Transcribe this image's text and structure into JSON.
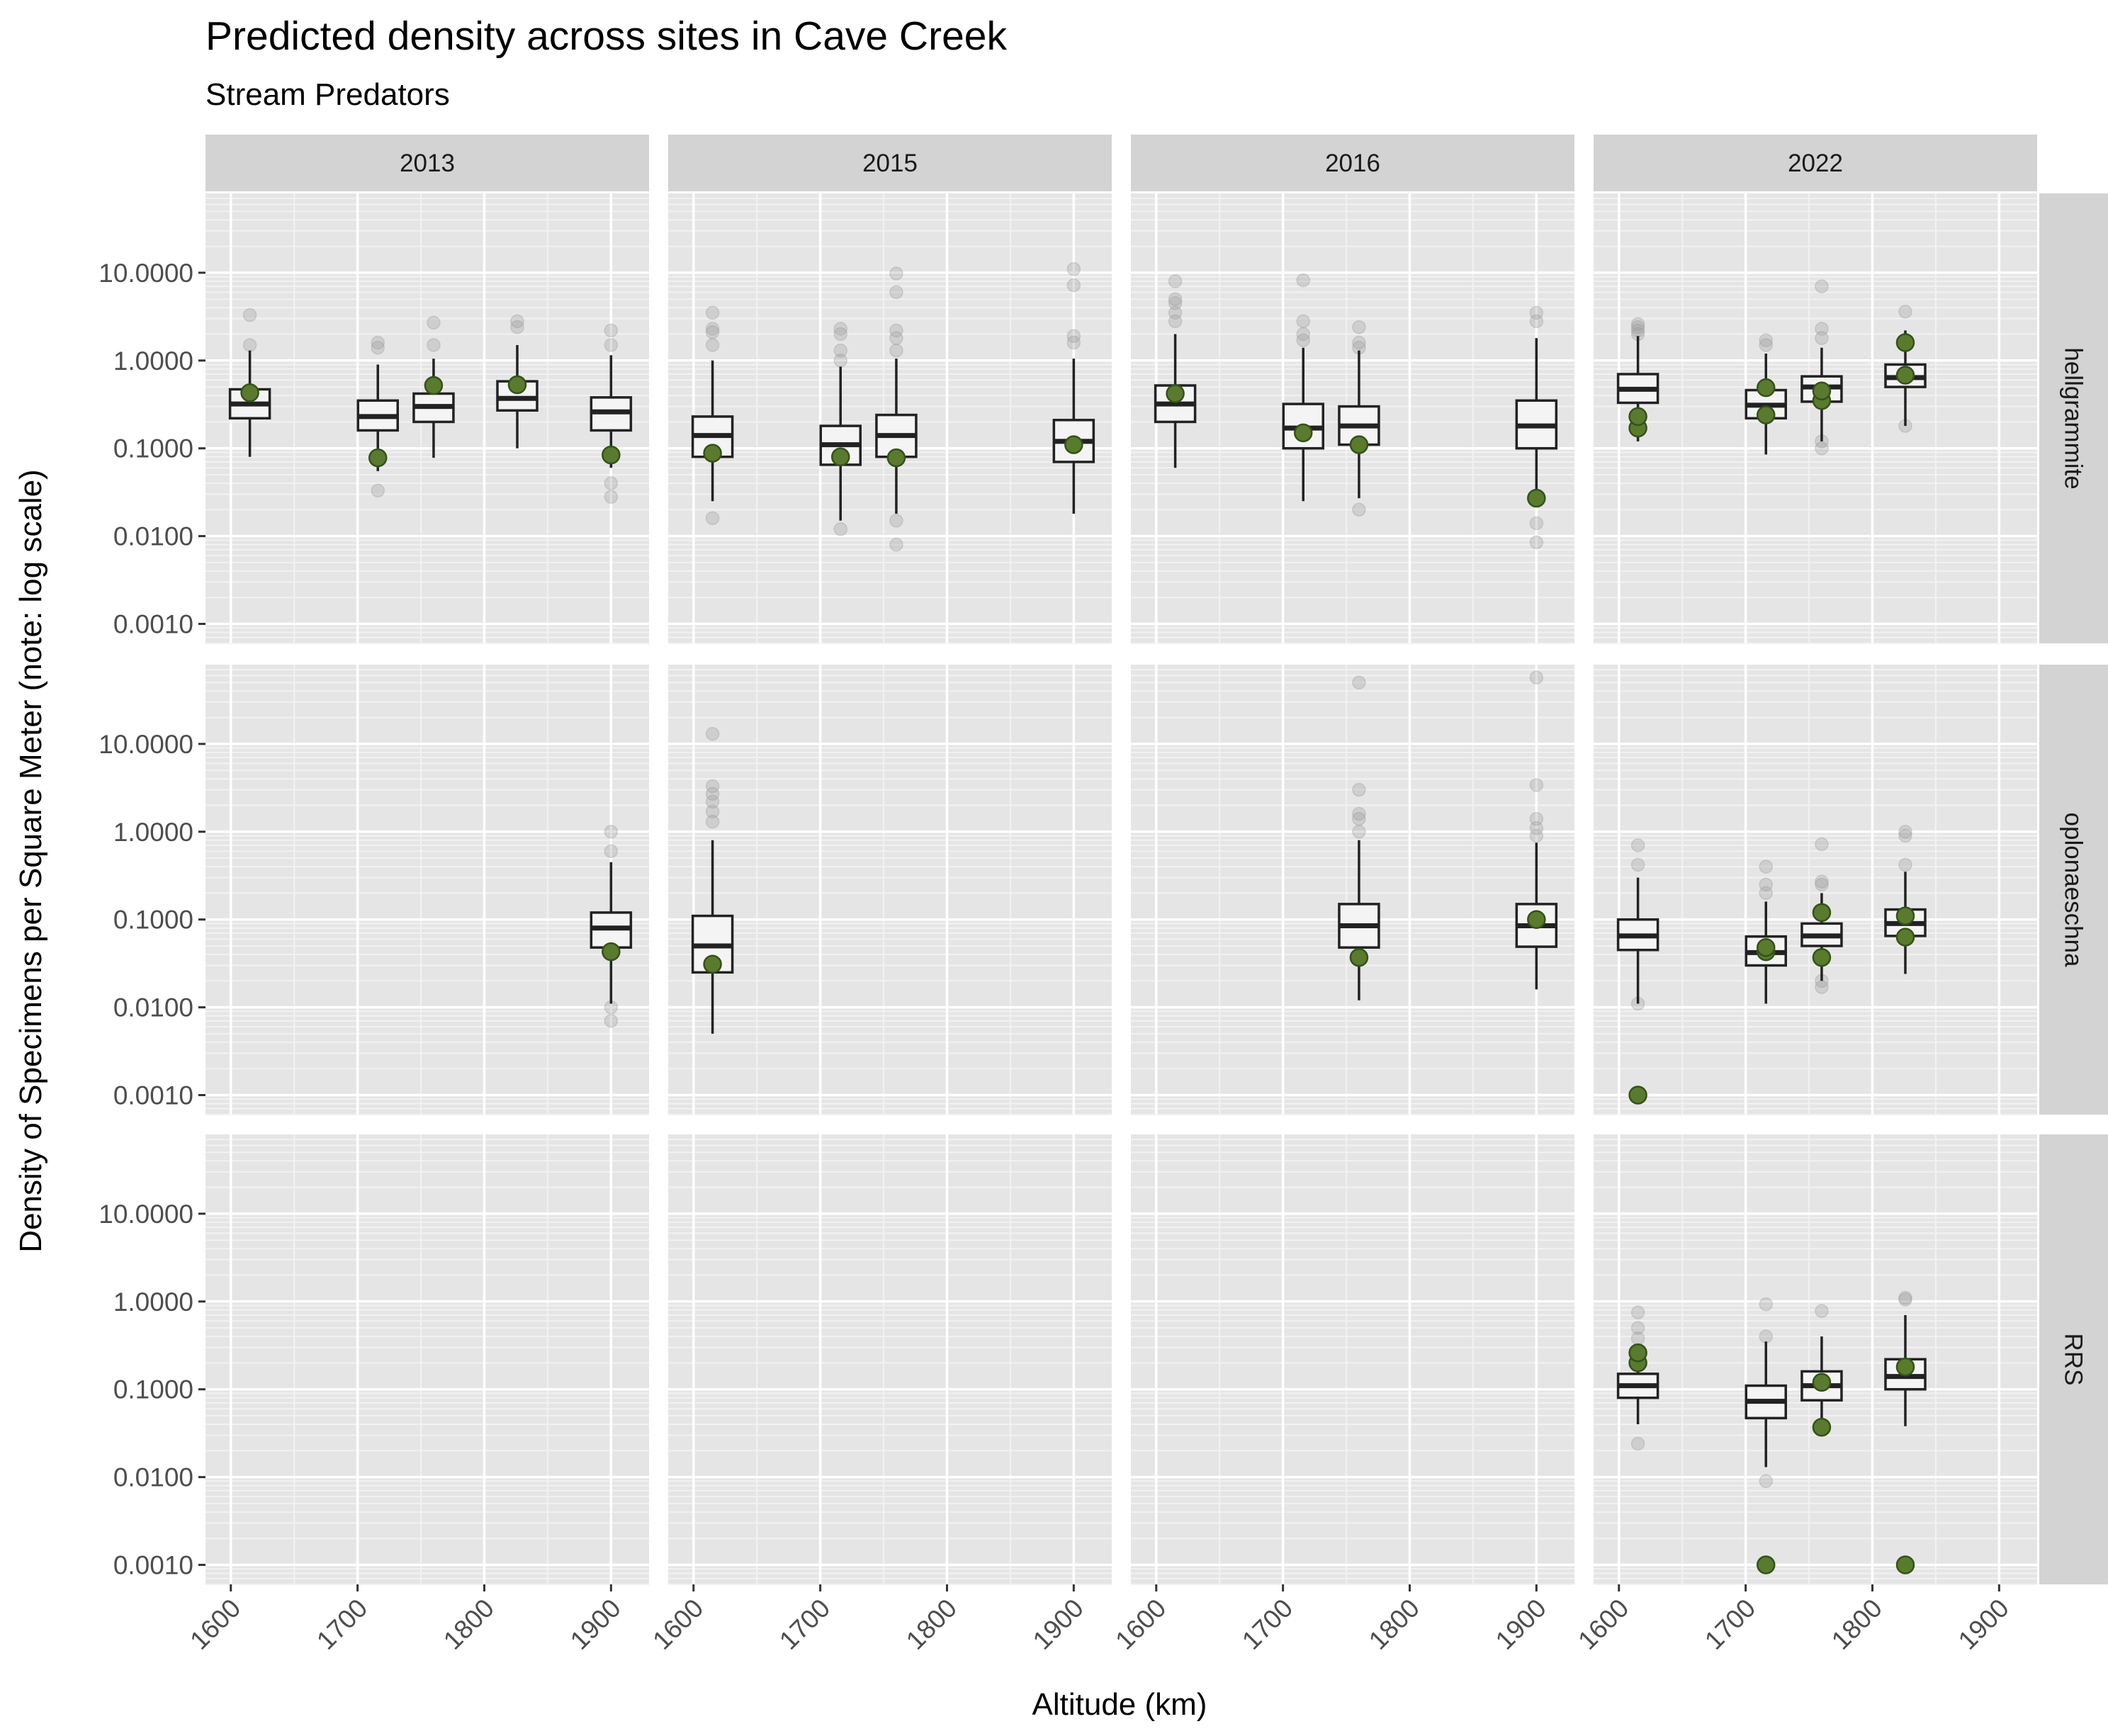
{
  "chart_data": {
    "type": "boxplot",
    "title": "Predicted density across sites in Cave Creek",
    "subtitle": "Stream Predators",
    "xlabel": "Altitude (km)",
    "ylabel": "Density of Specimens per Square Meter (note: log scale)",
    "y_scale": "log10",
    "ylim": [
      0.0006,
      80
    ],
    "xlim": [
      1580,
      1930
    ],
    "x_ticks": [
      1600,
      1700,
      1800,
      1900
    ],
    "x_tick_labels": [
      "1600",
      "1700",
      "1800",
      "1900"
    ],
    "y_ticks": [
      0.001,
      0.01,
      0.1,
      1,
      10
    ],
    "y_tick_labels": [
      "0.0010",
      "0.0100",
      "0.1000",
      "1.0000",
      "10.0000"
    ],
    "years": [
      "2013",
      "2015",
      "2016",
      "2022"
    ],
    "taxa": [
      "hellgrammite",
      "oplonaeschna",
      "RRS"
    ],
    "grid": true,
    "colors": {
      "panel_bg": "#e5e5e5",
      "grid_major": "#ffffff",
      "grid_minor": "#f2f2f2",
      "strip_bg": "#d3d3d3",
      "box_fill": "#f4f4f4",
      "box_line": "#222222",
      "observed": "#5a7a2e",
      "observed_edge": "#33521a",
      "outlier": "#999999"
    },
    "box_stats_fields": [
      "altitude",
      "lower_whisker",
      "q1",
      "median",
      "q3",
      "upper_whisker",
      "outliers",
      "observed"
    ],
    "panels": [
      {
        "year": "2013",
        "taxon": "hellgrammite",
        "boxes": [
          [
            1615,
            0.08,
            0.22,
            0.32,
            0.47,
            1.3,
            [
              1.5,
              3.3
            ],
            [
              0.43
            ]
          ],
          [
            1716,
            0.055,
            0.16,
            0.23,
            0.35,
            0.9,
            [
              0.033,
              1.4,
              1.6
            ],
            [
              0.078
            ]
          ],
          [
            1760,
            0.078,
            0.2,
            0.3,
            0.42,
            1.05,
            [
              1.5,
              2.7
            ],
            [
              0.52
            ]
          ],
          [
            1826,
            0.1,
            0.27,
            0.37,
            0.58,
            1.5,
            [
              2.4,
              2.8
            ],
            [
              0.53
            ]
          ],
          [
            1900,
            0.06,
            0.16,
            0.26,
            0.38,
            1.15,
            [
              0.028,
              0.04,
              1.5,
              2.2
            ],
            [
              0.084
            ]
          ]
        ]
      },
      {
        "year": "2015",
        "taxon": "hellgrammite",
        "boxes": [
          [
            1615,
            0.025,
            0.08,
            0.14,
            0.23,
            1.0,
            [
              0.016,
              1.5,
              2.1,
              2.3,
              3.5
            ],
            [
              0.088
            ]
          ],
          [
            1716,
            0.015,
            0.065,
            0.11,
            0.18,
            0.85,
            [
              0.012,
              1.0,
              1.3,
              2.0,
              2.3
            ],
            [
              0.08
            ]
          ],
          [
            1760,
            0.018,
            0.08,
            0.14,
            0.24,
            1.05,
            [
              0.008,
              0.015,
              1.3,
              1.8,
              2.2,
              6.0,
              9.8
            ],
            [
              0.078
            ]
          ],
          [
            1900,
            0.018,
            0.07,
            0.12,
            0.21,
            1.05,
            [
              1.6,
              1.9,
              7.2,
              11.0
            ],
            [
              0.11
            ]
          ]
        ]
      },
      {
        "year": "2016",
        "taxon": "hellgrammite",
        "boxes": [
          [
            1615,
            0.06,
            0.2,
            0.32,
            0.52,
            2.0,
            [
              2.8,
              3.5,
              4.5,
              5.0,
              8.0
            ],
            [
              0.42
            ]
          ],
          [
            1716,
            0.025,
            0.1,
            0.17,
            0.32,
            1.4,
            [
              1.7,
              2.0,
              2.8,
              8.2
            ],
            [
              0.15
            ]
          ],
          [
            1760,
            0.027,
            0.11,
            0.18,
            0.3,
            1.3,
            [
              0.02,
              1.4,
              1.6,
              2.4
            ],
            [
              0.11
            ]
          ],
          [
            1900,
            0.03,
            0.1,
            0.18,
            0.35,
            1.8,
            [
              0.0085,
              0.014,
              2.8,
              3.5
            ],
            [
              0.027
            ]
          ]
        ]
      },
      {
        "year": "2022",
        "taxon": "hellgrammite",
        "boxes": [
          [
            1615,
            0.12,
            0.33,
            0.47,
            0.7,
            1.9,
            [
              2.0,
              2.2,
              2.4,
              2.6
            ],
            [
              0.17,
              0.23
            ]
          ],
          [
            1716,
            0.085,
            0.22,
            0.31,
            0.46,
            1.2,
            [
              1.5,
              1.7
            ],
            [
              0.24,
              0.49
            ]
          ],
          [
            1760,
            0.12,
            0.34,
            0.5,
            0.66,
            1.4,
            [
              0.1,
              0.12,
              1.8,
              2.3,
              7.0
            ],
            [
              0.35,
              0.45
            ]
          ],
          [
            1826,
            0.18,
            0.5,
            0.64,
            0.9,
            2.2,
            [
              0.18,
              3.6
            ],
            [
              0.68,
              1.6
            ]
          ]
        ]
      },
      {
        "year": "2013",
        "taxon": "oplonaeschna",
        "boxes": [
          [
            1900,
            0.011,
            0.048,
            0.08,
            0.12,
            0.45,
            [
              0.007,
              0.01,
              0.6,
              1.0
            ],
            [
              0.043
            ]
          ]
        ]
      },
      {
        "year": "2015",
        "taxon": "oplonaeschna",
        "boxes": [
          [
            1615,
            0.005,
            0.025,
            0.05,
            0.11,
            0.8,
            [
              1.3,
              1.7,
              2.2,
              2.7,
              3.3,
              13.0
            ],
            [
              0.031
            ]
          ]
        ]
      },
      {
        "year": "2016",
        "taxon": "oplonaeschna",
        "boxes": [
          [
            1760,
            0.012,
            0.048,
            0.085,
            0.15,
            0.8,
            [
              1.0,
              1.4,
              1.6,
              3.0,
              50.0
            ],
            [
              0.037
            ]
          ],
          [
            1900,
            0.016,
            0.049,
            0.085,
            0.15,
            0.75,
            [
              0.9,
              1.1,
              1.4,
              3.4,
              57.0
            ],
            [
              0.1
            ]
          ]
        ]
      },
      {
        "year": "2022",
        "taxon": "oplonaeschna",
        "boxes": [
          [
            1615,
            0.011,
            0.045,
            0.065,
            0.1,
            0.3,
            [
              0.011,
              0.42,
              0.7
            ],
            [
              0.001
            ]
          ],
          [
            1716,
            0.011,
            0.03,
            0.042,
            0.064,
            0.16,
            [
              0.2,
              0.25,
              0.4
            ],
            [
              0.043,
              0.048
            ]
          ],
          [
            1760,
            0.02,
            0.05,
            0.065,
            0.09,
            0.2,
            [
              0.017,
              0.02,
              0.25,
              0.27,
              0.72
            ],
            [
              0.037,
              0.12
            ]
          ],
          [
            1826,
            0.024,
            0.065,
            0.09,
            0.13,
            0.35,
            [
              0.42,
              0.9,
              1.0
            ],
            [
              0.063,
              0.11
            ]
          ]
        ]
      },
      {
        "year": "2013",
        "taxon": "RRS",
        "boxes": []
      },
      {
        "year": "2015",
        "taxon": "RRS",
        "boxes": []
      },
      {
        "year": "2016",
        "taxon": "RRS",
        "boxes": []
      },
      {
        "year": "2022",
        "taxon": "RRS",
        "boxes": [
          [
            1615,
            0.04,
            0.08,
            0.11,
            0.15,
            0.3,
            [
              0.024,
              0.38,
              0.5,
              0.75
            ],
            [
              0.2,
              0.26
            ]
          ],
          [
            1716,
            0.013,
            0.047,
            0.073,
            0.11,
            0.35,
            [
              0.009,
              0.4,
              0.93
            ],
            [
              0.001
            ]
          ],
          [
            1760,
            0.035,
            0.075,
            0.11,
            0.16,
            0.4,
            [
              0.78
            ],
            [
              0.037,
              0.12
            ]
          ],
          [
            1826,
            0.038,
            0.1,
            0.14,
            0.22,
            0.7,
            [
              1.05,
              1.1
            ],
            [
              0.001,
              0.18
            ]
          ]
        ]
      }
    ]
  }
}
